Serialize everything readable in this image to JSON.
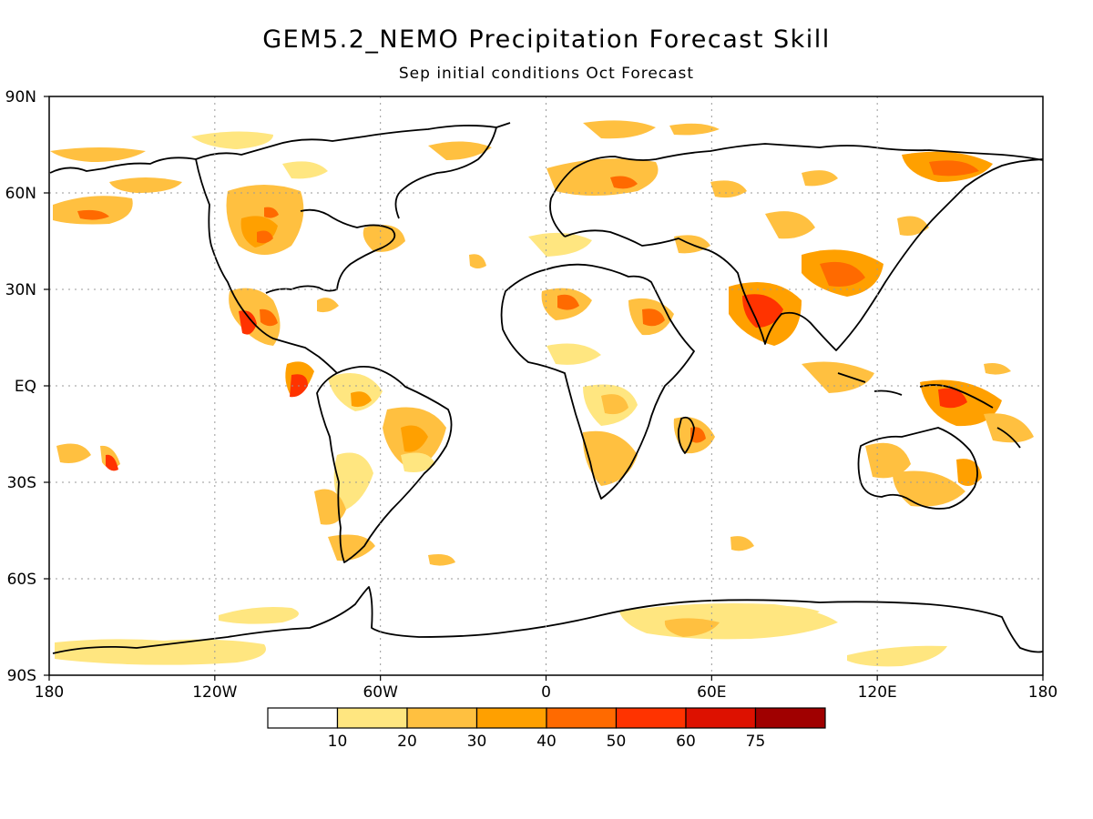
{
  "title": "GEM5.2_NEMO Precipitation Forecast Skill",
  "subtitle": "Sep initial conditions  Oct Forecast",
  "y_tick_labels": [
    "90N",
    "60N",
    "30N",
    "EQ",
    "30S",
    "60S",
    "90S"
  ],
  "x_tick_labels": [
    "180",
    "120W",
    "60W",
    "0",
    "60E",
    "120E",
    "180"
  ],
  "colorbar": {
    "labels": [
      "10",
      "20",
      "30",
      "40",
      "50",
      "60",
      "75"
    ],
    "colors": [
      "#ffffff",
      "#ffe680",
      "#ffc040",
      "#ffa000",
      "#ff6a00",
      "#ff3300",
      "#dd1100",
      "#a00000"
    ]
  },
  "chart_data": {
    "type": "heatmap",
    "title": "GEM5.2_NEMO Precipitation Forecast Skill",
    "subtitle": "Sep initial conditions  Oct Forecast",
    "x_range": [
      -180,
      180
    ],
    "y_range": [
      -90,
      90
    ],
    "grid": true,
    "color_levels": [
      10,
      20,
      30,
      40,
      50,
      60,
      75
    ],
    "skill_regions": [
      {
        "lon": -120,
        "lat": 55,
        "value": 30
      },
      {
        "lon": -105,
        "lat": 48,
        "value": 40
      },
      {
        "lon": -160,
        "lat": 60,
        "value": 30
      },
      {
        "lon": -100,
        "lat": 22,
        "value": 50
      },
      {
        "lon": -85,
        "lat": 0,
        "value": 50
      },
      {
        "lon": -60,
        "lat": -10,
        "value": 30
      },
      {
        "lon": -50,
        "lat": -2,
        "value": 30
      },
      {
        "lon": -65,
        "lat": -20,
        "value": 30
      },
      {
        "lon": 10,
        "lat": 25,
        "value": 40
      },
      {
        "lon": 40,
        "lat": 22,
        "value": 40
      },
      {
        "lon": 75,
        "lat": 22,
        "value": 50
      },
      {
        "lon": 110,
        "lat": 35,
        "value": 40
      },
      {
        "lon": 30,
        "lat": 62,
        "value": 40
      },
      {
        "lon": 140,
        "lat": 65,
        "value": 40
      },
      {
        "lon": 150,
        "lat": -5,
        "value": 40
      },
      {
        "lon": 140,
        "lat": -30,
        "value": 30
      },
      {
        "lon": 10,
        "lat": -5,
        "value": 30
      },
      {
        "lon": 35,
        "lat": 0,
        "value": 30
      },
      {
        "lon": 50,
        "lat": -20,
        "value": 30
      },
      {
        "lon": 60,
        "lat": -80,
        "value": 20
      },
      {
        "lon": -140,
        "lat": -80,
        "value": 20
      },
      {
        "lon": 150,
        "lat": -80,
        "value": 20
      }
    ]
  }
}
